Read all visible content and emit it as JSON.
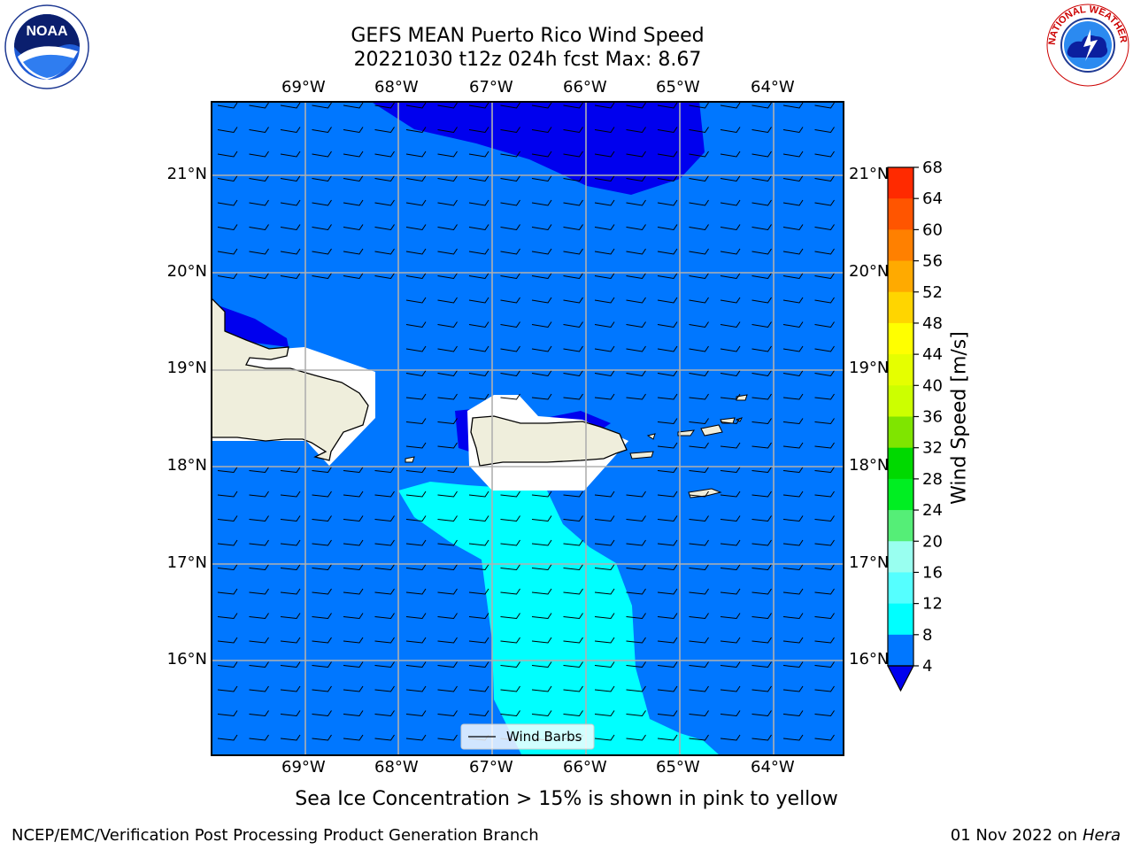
{
  "title_line1": "GEFS MEAN Puerto Rico Wind Speed",
  "title_line2": "20221030 t12z 024h fcst   Max: 8.67",
  "lon_labels": [
    "69°W",
    "68°W",
    "67°W",
    "66°W",
    "65°W",
    "64°W"
  ],
  "lat_labels": [
    "21°N",
    "20°N",
    "19°N",
    "18°N",
    "17°N",
    "16°N"
  ],
  "colorbar": {
    "label": "Wind Speed [m/s]",
    "ticks": [
      "68",
      "64",
      "60",
      "56",
      "52",
      "48",
      "44",
      "40",
      "36",
      "32",
      "28",
      "24",
      "20",
      "16",
      "12",
      "8",
      "4"
    ],
    "colors": [
      "#ff0000",
      "#ff2a00",
      "#ff5500",
      "#ff8000",
      "#ffaa00",
      "#ffd500",
      "#ffff00",
      "#e5ff00",
      "#ccff00",
      "#7fe500",
      "#00d900",
      "#00ee22",
      "#55ee77",
      "#99fff0",
      "#55ffff",
      "#00ffff",
      "#0077ff"
    ],
    "under_color": "#0000ee"
  },
  "legend": {
    "label": "Wind Barbs"
  },
  "note": "Sea Ice Concentration > 15% is shown in pink to yellow",
  "footer_left": "NCEP/EMC/Verification Post Processing Product Generation Branch",
  "footer_right_date": "01 Nov 2022 on",
  "footer_right_host": "Hera",
  "logos": {
    "left": "NOAA",
    "right": "NATIONAL WEATHER SERVICE"
  },
  "map_colors": {
    "ocean": "#0077ff",
    "low": "#0000ee",
    "high": "#00ffff",
    "land": "#efeedc",
    "masked": "#ffffff",
    "grid": "#b0b0b0"
  }
}
